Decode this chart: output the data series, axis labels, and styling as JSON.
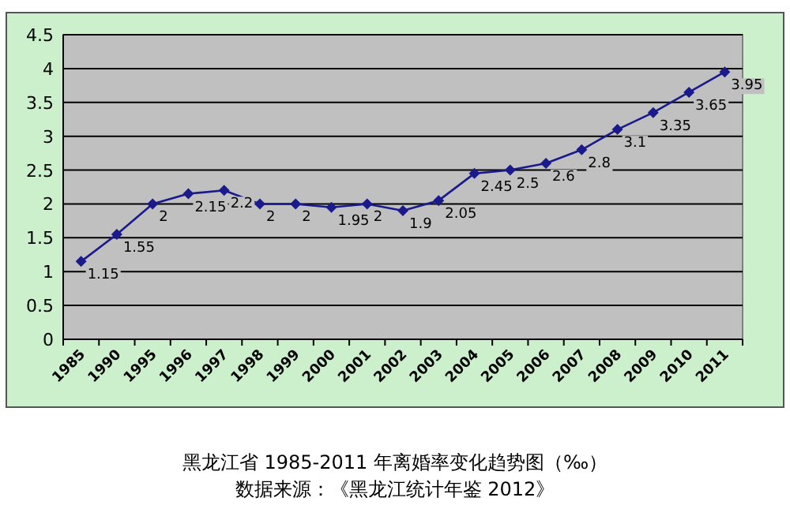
{
  "chart_data": {
    "type": "line",
    "title": "黑龙江省 1985-2011 年离婚率变化趋势图（‰）",
    "annotations": [
      "数据来源：《黑龙江统计年鉴 2012》"
    ],
    "categories": [
      "1985",
      "1990",
      "1995",
      "1996",
      "1997",
      "1998",
      "1999",
      "2000",
      "2001",
      "2002",
      "2003",
      "2004",
      "2005",
      "2006",
      "2007",
      "2008",
      "2009",
      "2010",
      "2011"
    ],
    "series": [
      {
        "color": "#1a1a8c",
        "values": [
          1.15,
          1.55,
          2,
          2.15,
          2.2,
          2,
          2,
          1.95,
          2,
          1.9,
          2.05,
          2.45,
          2.5,
          2.6,
          2.8,
          3.1,
          3.35,
          3.65,
          3.95
        ]
      }
    ],
    "ylim": [
      0,
      4.5
    ],
    "yticks": [
      0,
      0.5,
      1,
      1.5,
      2,
      2.5,
      3,
      3.5,
      4,
      4.5
    ],
    "grid": "y",
    "marker": "diamond",
    "line_style": "solid",
    "data_labels": true
  }
}
